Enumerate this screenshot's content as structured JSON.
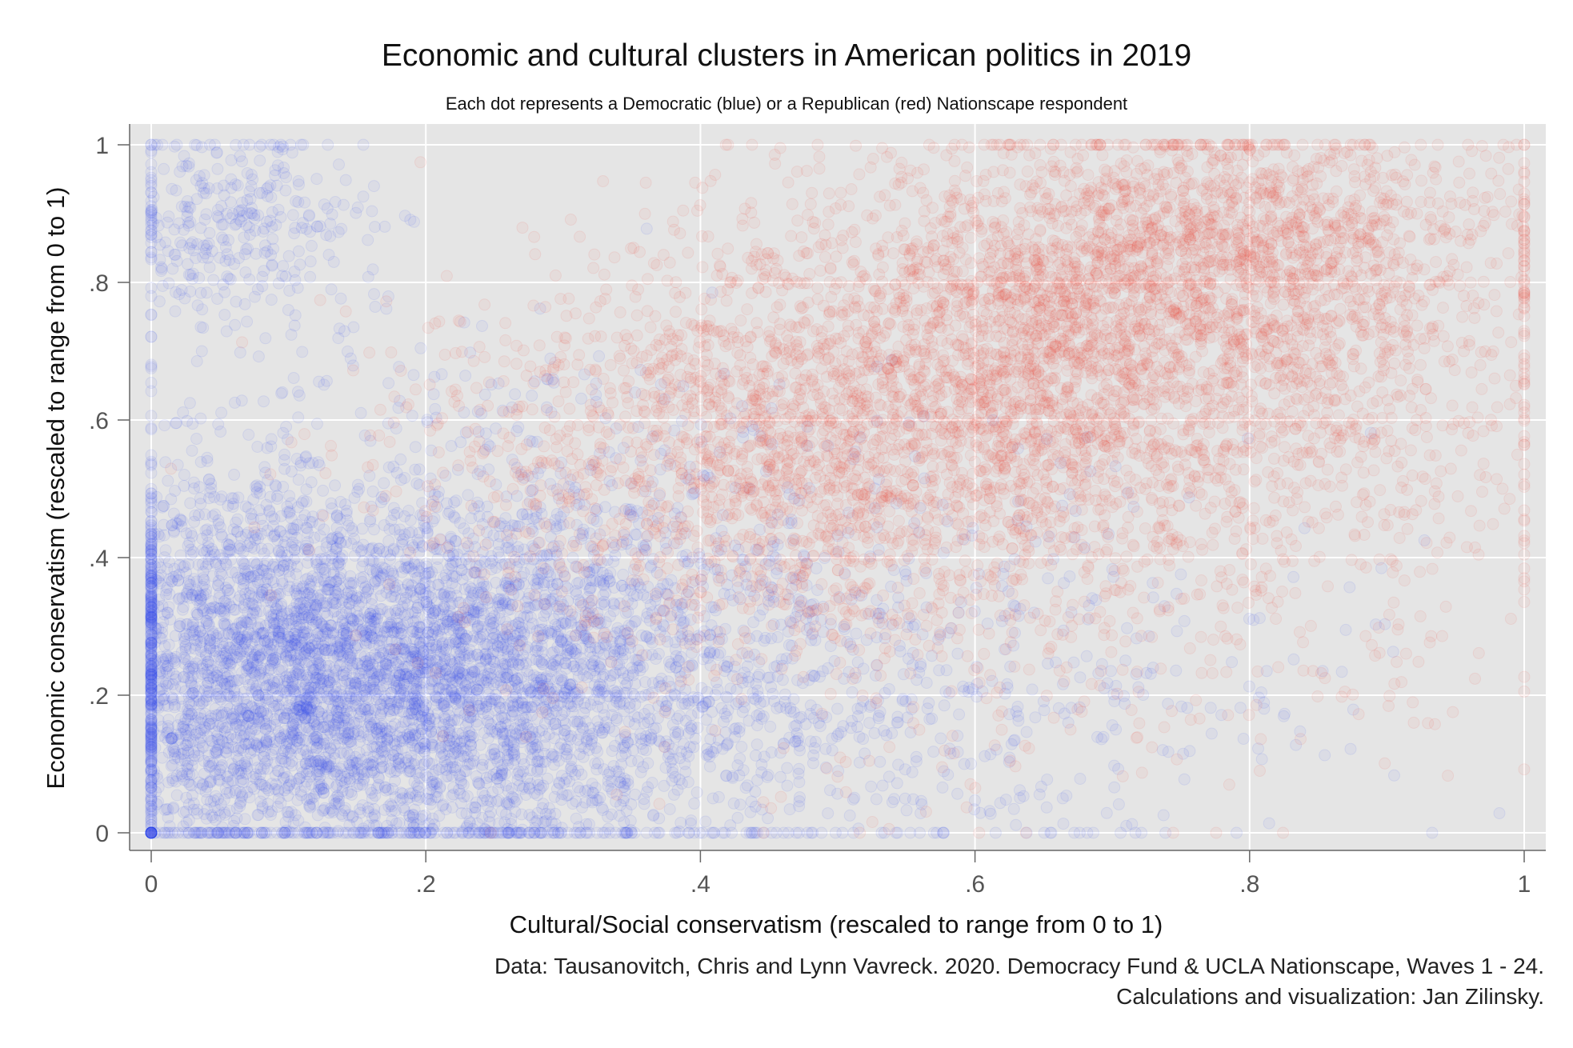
{
  "chart_data": {
    "type": "scatter",
    "title": "Economic and cultural clusters in American politics in 2019",
    "subtitle": "Each dot represents a Democratic (blue) or a Republican (red) Nationscape respondent",
    "xlabel": "Cultural/Social conservatism (rescaled to range from 0 to 1)",
    "ylabel": "Economic conservatism (rescaled to range from 0 to 1)",
    "xlim": [
      0,
      1
    ],
    "ylim": [
      0,
      1
    ],
    "xticks": [
      {
        "value": 0,
        "label": "0"
      },
      {
        "value": 0.2,
        "label": ".2"
      },
      {
        "value": 0.4,
        "label": ".4"
      },
      {
        "value": 0.6,
        "label": ".6"
      },
      {
        "value": 0.8,
        "label": ".8"
      },
      {
        "value": 1,
        "label": "1"
      }
    ],
    "yticks": [
      {
        "value": 0,
        "label": "0"
      },
      {
        "value": 0.2,
        "label": ".2"
      },
      {
        "value": 0.4,
        "label": ".4"
      },
      {
        "value": 0.6,
        "label": ".6"
      },
      {
        "value": 0.8,
        "label": ".8"
      },
      {
        "value": 1,
        "label": "1"
      }
    ],
    "grid": true,
    "series": [
      {
        "color": "#1f3ff0",
        "clusters": [
          {
            "cx": 0.19,
            "cy": 0.22,
            "sx": 0.09,
            "sy": 0.12,
            "n": 2600
          },
          {
            "cx": 0.06,
            "cy": 0.24,
            "sx": 0.06,
            "sy": 0.16,
            "n": 1500
          },
          {
            "cx": 0.27,
            "cy": 0.3,
            "sx": 0.14,
            "sy": 0.17,
            "n": 1400
          },
          {
            "cx": 0.06,
            "cy": 0.88,
            "sx": 0.05,
            "sy": 0.08,
            "n": 350
          },
          {
            "cx": 0.35,
            "cy": 0.15,
            "sx": 0.2,
            "sy": 0.1,
            "n": 700
          },
          {
            "cx": 0.55,
            "cy": 0.25,
            "sx": 0.2,
            "sy": 0.15,
            "n": 300
          }
        ]
      },
      {
        "color": "#ef3b2c",
        "clusters": [
          {
            "cx": 0.68,
            "cy": 0.72,
            "sx": 0.14,
            "sy": 0.14,
            "n": 3000
          },
          {
            "cx": 0.45,
            "cy": 0.55,
            "sx": 0.13,
            "sy": 0.14,
            "n": 1600
          },
          {
            "cx": 0.8,
            "cy": 0.88,
            "sx": 0.1,
            "sy": 0.08,
            "n": 900
          },
          {
            "cx": 0.62,
            "cy": 0.42,
            "sx": 0.16,
            "sy": 0.17,
            "n": 700
          },
          {
            "cx": 0.88,
            "cy": 0.55,
            "sx": 0.08,
            "sy": 0.2,
            "n": 300
          }
        ]
      }
    ]
  },
  "notes": {
    "source": "Data: Tausanovitch, Chris and Lynn Vavreck. 2020. Democracy Fund & UCLA Nationscape, Waves 1 - 24.",
    "credit": "Calculations and visualization: Jan Zilinsky."
  }
}
